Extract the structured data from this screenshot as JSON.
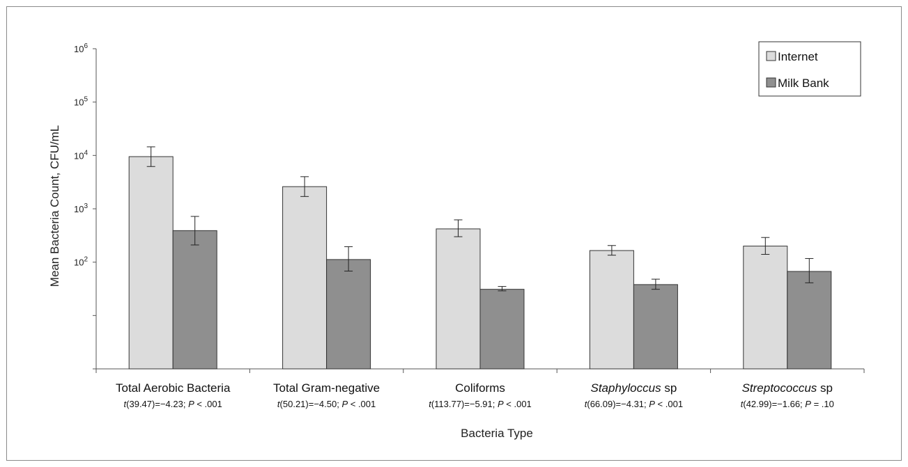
{
  "chart_data": {
    "type": "bar",
    "yscale": "log",
    "ylim": [
      1,
      1000000
    ],
    "ylabel": "Mean Bacteria Count, CFU/mL",
    "xlabel": "Bacteria Type",
    "legend_position": "top-right",
    "y_ticks": [
      {
        "value": 1000000,
        "base": "10",
        "exp": "6"
      },
      {
        "value": 100000,
        "base": "10",
        "exp": "5"
      },
      {
        "value": 10000,
        "base": "10",
        "exp": "4"
      },
      {
        "value": 1000,
        "base": "10",
        "exp": "3"
      },
      {
        "value": 100,
        "base": "10",
        "exp": "2"
      },
      {
        "value": 10,
        "base": "",
        "exp": ""
      },
      {
        "value": 1,
        "base": "",
        "exp": ""
      }
    ],
    "categories": [
      {
        "name_italic": "",
        "name": "Total Aerobic Bacteria",
        "stat_t": "t",
        "stat_mid": "(39.47)=−4.23; ",
        "stat_p": "P",
        "stat_end": " < .001"
      },
      {
        "name_italic": "",
        "name": "Total Gram-negative",
        "stat_t": "t",
        "stat_mid": "(50.21)=−4.50; ",
        "stat_p": "P",
        "stat_end": " < .001"
      },
      {
        "name_italic": "",
        "name": "Coliforms",
        "stat_t": "t",
        "stat_mid": "(113.77)=−5.91; ",
        "stat_p": "P",
        "stat_end": " < .001"
      },
      {
        "name_italic": "Staphyloccus",
        "name": " sp",
        "stat_t": "t",
        "stat_mid": "(66.09)=−4.31; ",
        "stat_p": "P",
        "stat_end": " < .001"
      },
      {
        "name_italic": "Streptococcus",
        "name": " sp",
        "stat_t": "t",
        "stat_mid": "(42.99)=−1.66; ",
        "stat_p": "P",
        "stat_end": " = .10"
      }
    ],
    "series": [
      {
        "name": "Internet",
        "color": "#dcdcdc",
        "values": [
          9500,
          2600,
          420,
          165,
          200
        ],
        "err_low": [
          6200,
          1700,
          300,
          135,
          140
        ],
        "err_high": [
          14500,
          4000,
          620,
          205,
          290
        ]
      },
      {
        "name": "Milk Bank",
        "color": "#8f8f8f",
        "values": [
          390,
          112,
          31,
          38,
          67
        ],
        "err_low": [
          210,
          68,
          29,
          31,
          41
        ],
        "err_high": [
          720,
          195,
          35,
          48,
          117
        ]
      }
    ]
  }
}
